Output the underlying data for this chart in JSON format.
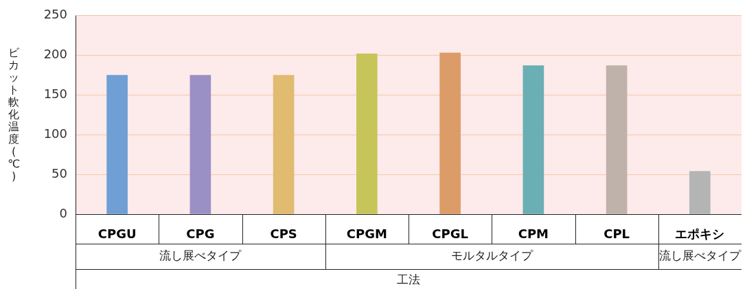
{
  "chart_data": {
    "type": "bar",
    "categories": [
      "CPGU",
      "CPG",
      "CPS",
      "CPGM",
      "CPGL",
      "CPM",
      "CPL",
      "エポキシ"
    ],
    "values": [
      175,
      175,
      175,
      202,
      203,
      187,
      187,
      54
    ],
    "colors": [
      "#6f9fd4",
      "#9b90c5",
      "#e0bb70",
      "#c5c55a",
      "#db9c68",
      "#6aafb3",
      "#bfb2aa",
      "#b3b5b4"
    ],
    "ylim": [
      0,
      250
    ],
    "yticks": [
      0,
      50,
      100,
      150,
      200,
      250
    ],
    "grid": "y",
    "ylabel": "ビカット軟化温度(℃)",
    "xlabel": "工法",
    "annotations": [
      "流し展べタイプ",
      "モルタルタイプ",
      "流し展べタイプ"
    ]
  }
}
